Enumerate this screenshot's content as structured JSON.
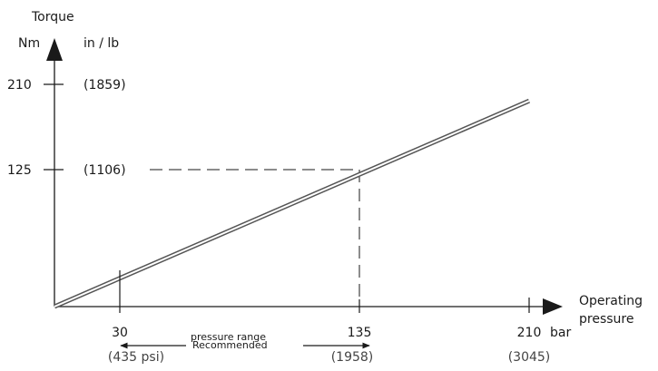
{
  "chart_data": {
    "type": "line",
    "title": "",
    "y_axis": {
      "title": "Torque",
      "unit_left": "Nm",
      "unit_right": "in / lb",
      "range": [
        0,
        210
      ],
      "ticks": [
        {
          "value": 210,
          "label": "210",
          "alt_label": "(1859)"
        },
        {
          "value": 125,
          "label": "125",
          "alt_label": "(1106)"
        }
      ]
    },
    "x_axis": {
      "title_line1": "Operating",
      "title_line2": "pressure",
      "unit": "bar",
      "range": [
        0,
        210
      ],
      "ticks": [
        {
          "value": 30,
          "label": "30",
          "alt_label": "(435 psi)"
        },
        {
          "value": 135,
          "label": "135",
          "alt_label": "(1958)"
        },
        {
          "value": 210,
          "label": "210",
          "alt_label": "(3045)"
        }
      ]
    },
    "series": [
      {
        "x": [
          0,
          30,
          135,
          210
        ],
        "y": [
          0,
          27.8,
          125,
          194.4
        ]
      }
    ],
    "reference_point": {
      "x": 135,
      "y": 125
    },
    "range_annotation": {
      "from": 30,
      "to": 135,
      "line1": "pressure  range",
      "line2": "Recommended"
    },
    "grid": false
  },
  "colors": {
    "axis": "#1a1a1a",
    "line_fill": "#ffffff",
    "line_edge": "#555555"
  }
}
